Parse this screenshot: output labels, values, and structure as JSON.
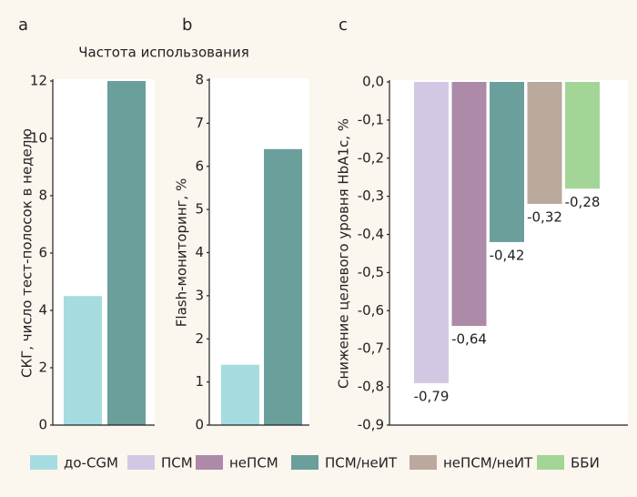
{
  "chart_data": [
    {
      "type": "bar",
      "label": "a",
      "title": "Частота использования",
      "y_label": "СКГ, число тест-полосок в неделю",
      "categories": [
        null,
        null
      ],
      "values": [
        4.5,
        12
      ],
      "colors": [
        "#a6dcdf",
        "#6a9f9c"
      ],
      "ylim": [
        0,
        12
      ],
      "yticks": [
        0,
        2,
        4,
        6,
        8,
        10,
        12
      ]
    },
    {
      "type": "bar",
      "label": "b",
      "y_label": "Flash-мониторинг, %",
      "categories": [
        null,
        null
      ],
      "values": [
        1.4,
        6.4
      ],
      "colors": [
        "#a6dcdf",
        "#6a9f9c"
      ],
      "ylim": [
        0,
        8
      ],
      "yticks": [
        0,
        1,
        2,
        3,
        4,
        5,
        6,
        7,
        8
      ]
    },
    {
      "type": "bar",
      "label": "c",
      "y_label": "Снижение целевого уровня HbA1c, %",
      "categories": [
        null,
        null,
        null,
        null,
        null
      ],
      "values": [
        -0.79,
        -0.64,
        -0.42,
        -0.32,
        -0.28
      ],
      "value_labels": [
        "-0,79",
        "-0,64",
        "-0,42",
        "-0,32",
        "-0,28"
      ],
      "colors": [
        "#d3c8e4",
        "#ad8aa8",
        "#6a9f9c",
        "#bba99e",
        "#a3d596"
      ],
      "ylim": [
        -0.9,
        0
      ],
      "yticks": [
        {
          "value": 0,
          "label": "0,0"
        },
        {
          "value": -0.1,
          "label": "-0,1"
        },
        {
          "value": -0.2,
          "label": "-0,2"
        },
        {
          "value": -0.3,
          "label": "-0,3"
        },
        {
          "value": -0.4,
          "label": "-0,4"
        },
        {
          "value": -0.5,
          "label": "-0,5"
        },
        {
          "value": -0.6,
          "label": "-0,6"
        },
        {
          "value": -0.7,
          "label": "-0,7"
        },
        {
          "value": -0.8,
          "label": "-0,8"
        },
        {
          "value": -0.9,
          "label": "-0,9"
        }
      ]
    }
  ],
  "legend": {
    "items": [
      {
        "name": "до-CGM",
        "color": "#a6dcdf"
      },
      {
        "name": "ПСМ",
        "color": "#d3c8e4"
      },
      {
        "name": "неПСМ",
        "color": "#ad8aa8"
      },
      {
        "name": "ПСМ/неИТ",
        "color": "#6a9f9c"
      },
      {
        "name": "неПСМ/неИТ",
        "color": "#bba99e"
      },
      {
        "name": "ББИ",
        "color": "#a3d596"
      }
    ]
  }
}
